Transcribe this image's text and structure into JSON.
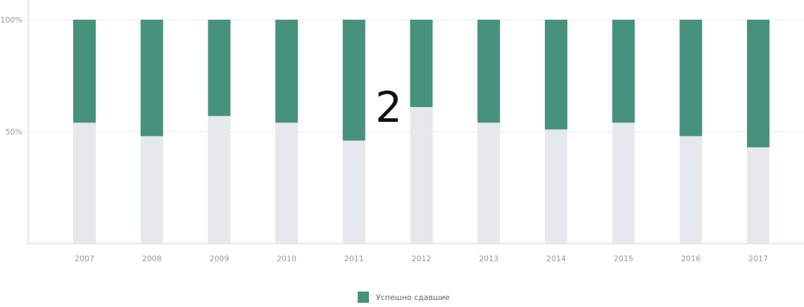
{
  "chart_data": {
    "type": "bar",
    "stacked": true,
    "categories": [
      "2007",
      "2008",
      "2009",
      "2010",
      "2011",
      "2012",
      "2013",
      "2014",
      "2015",
      "2016",
      "2017"
    ],
    "series": [
      {
        "name": "",
        "values": [
          54,
          48,
          57,
          54,
          46,
          61,
          54,
          51,
          54,
          48,
          43
        ],
        "color": "#e6e9ec"
      },
      {
        "name": "Успешно сдавшие",
        "values": [
          46,
          52,
          43,
          46,
          54,
          39,
          46,
          49,
          46,
          52,
          57
        ],
        "color": "#47927c"
      }
    ],
    "y_tick_labels": [
      "50%",
      "100%"
    ],
    "y_ticks": [
      50,
      100
    ],
    "ylim": [
      0,
      100
    ],
    "grid": true,
    "legend_position": "bottom-center"
  },
  "overlay_label": "2",
  "legend": {
    "label": "Успешно сдавшие",
    "color": "#47927c"
  }
}
